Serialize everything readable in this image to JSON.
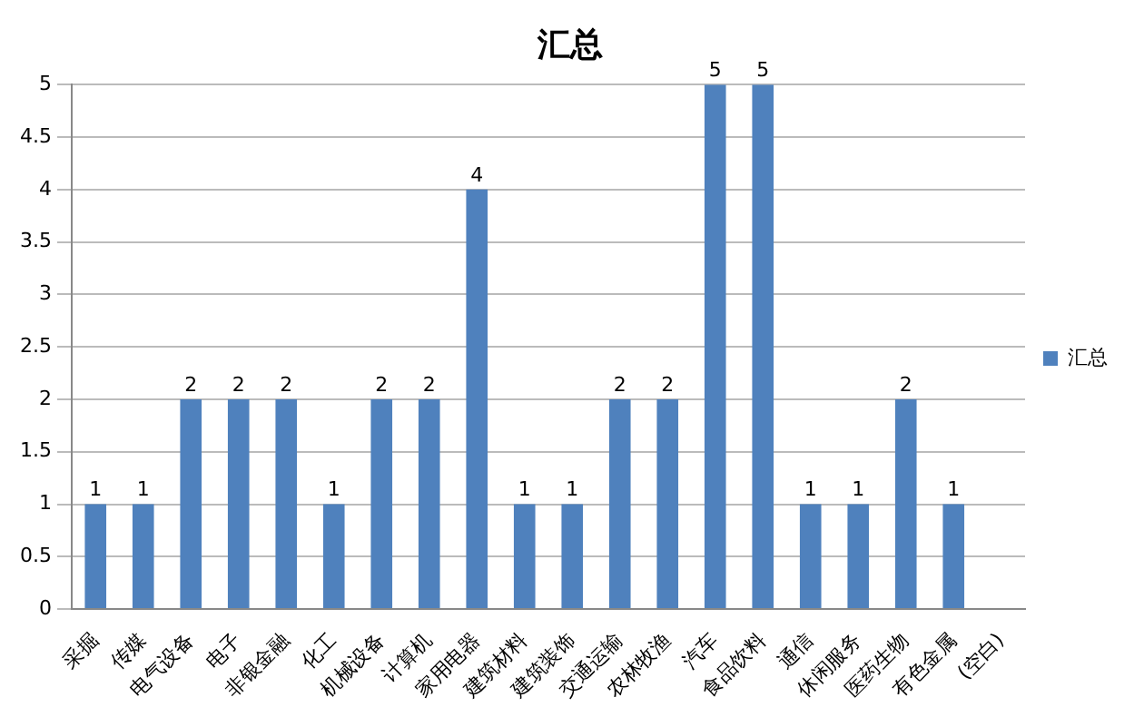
{
  "chart_data": {
    "type": "bar",
    "title": "汇总",
    "categories": [
      "采掘",
      "传媒",
      "电气设备",
      "电子",
      "非银金融",
      "化工",
      "机械设备",
      "计算机",
      "家用电器",
      "建筑材料",
      "建筑装饰",
      "交通运输",
      "农林牧渔",
      "汽车",
      "食品饮料",
      "通信",
      "休闲服务",
      "医药生物",
      "有色金属",
      "(空白)"
    ],
    "series": [
      {
        "name": "汇总",
        "color": "#4f81bd",
        "values": [
          1,
          1,
          2,
          2,
          2,
          1,
          2,
          2,
          4,
          1,
          1,
          2,
          2,
          5,
          5,
          1,
          1,
          2,
          1,
          null
        ]
      }
    ],
    "ylim": [
      0,
      5
    ],
    "yticks": [
      0,
      0.5,
      1,
      1.5,
      2,
      2.5,
      3,
      3.5,
      4,
      4.5,
      5
    ],
    "grid": "y",
    "legend": "right",
    "data_labels": true
  }
}
